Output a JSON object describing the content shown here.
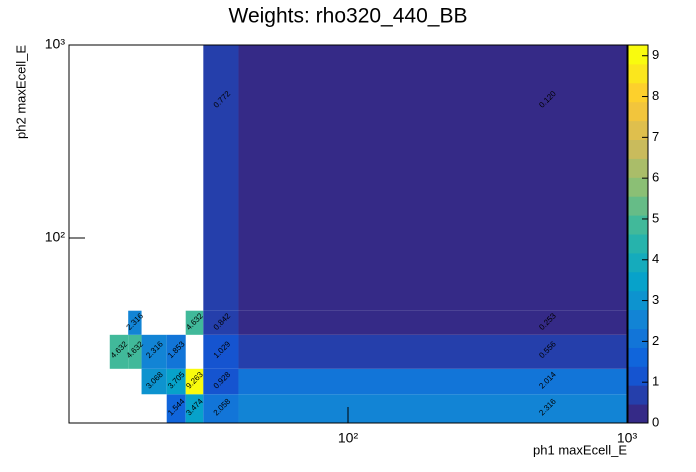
{
  "chart_data": {
    "type": "heatmap",
    "title": "Weights: rho320_440_BB",
    "x_label": "ph1 maxEcell_E",
    "y_label": "ph2 maxEcell_E",
    "log_x": true,
    "log_y": true,
    "xlim": [
      10,
      1000
    ],
    "ylim": [
      11,
      1000
    ],
    "xticks": [
      {
        "value": 100,
        "label": "10²"
      },
      {
        "value": 1000,
        "label": "10³"
      }
    ],
    "yticks": [
      {
        "value": 100,
        "label": "10²"
      },
      {
        "value": 1000,
        "label": "10³"
      }
    ],
    "x_edges": [
      14,
      16.3,
      18.2,
      22.4,
      26.2,
      30.3,
      40.5,
      1000
    ],
    "y_edges": [
      11,
      15.5,
      21,
      31.5,
      42,
      1000
    ],
    "z": [
      [
        null,
        null,
        null,
        1.544,
        3.474,
        2.058,
        2.316
      ],
      [
        null,
        null,
        3.068,
        3.705,
        9.263,
        0.928,
        2.014
      ],
      [
        4.632,
        4.632,
        2.316,
        1.853,
        null,
        1.029,
        0.556
      ],
      [
        null,
        2.316,
        null,
        null,
        4.632,
        0.842,
        0.253
      ],
      [
        null,
        null,
        null,
        null,
        null,
        0.772,
        0.12
      ]
    ],
    "z_labels": [
      [
        null,
        null,
        null,
        "1.544",
        "3.474",
        "2.058",
        "2.316"
      ],
      [
        null,
        null,
        "3.068",
        "3.705",
        "9.263",
        "0.928",
        "2.014"
      ],
      [
        "4.632",
        "4.632",
        "2.316",
        "1.853",
        null,
        "1.029",
        "0.556"
      ],
      [
        null,
        "2.316",
        null,
        null,
        "4.632",
        "0.842",
        "0.253"
      ],
      [
        null,
        null,
        null,
        null,
        null,
        "0.772",
        "0.120"
      ]
    ],
    "zlim": [
      0,
      9.263
    ],
    "zticks": [
      0,
      1,
      2,
      3,
      4,
      5,
      6,
      7,
      8,
      9
    ],
    "colormap": "bird",
    "contours": 20
  }
}
